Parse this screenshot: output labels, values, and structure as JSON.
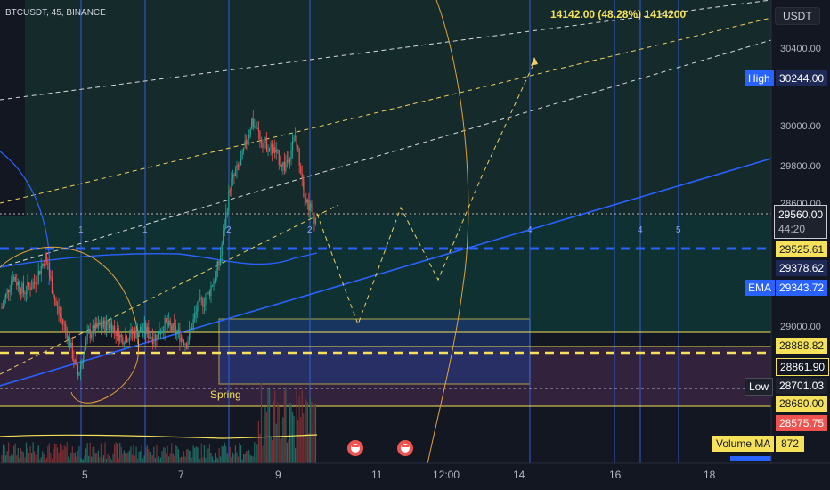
{
  "header": {
    "symbol_line": "BTCUSDT, 45, BINANCE",
    "fib_readout": "14142.00 (48.28%) 1414200"
  },
  "price_scale": {
    "currency": "USDT",
    "ticks": [
      "30400.00",
      "30000.00",
      "29800.00",
      "29000.00",
      "28600.00"
    ]
  },
  "time_axis": [
    "5",
    "7",
    "9",
    "11",
    "12:00",
    "14",
    "16",
    "18"
  ],
  "cycle_markers": [
    "1",
    "1",
    "2",
    "2",
    "4",
    "4",
    "5"
  ],
  "annotations": {
    "spring": "Spring"
  },
  "labels": {
    "high": {
      "tag": "High",
      "value": "30244.00"
    },
    "current": {
      "value": "29560.00",
      "countdown": "44:20"
    },
    "level_29525": "29525.61",
    "level_29378": "29378.62",
    "ema": {
      "tag": "EMA",
      "value": "29343.72"
    },
    "level_28888": "28888.82",
    "level_28861": "28861.90",
    "low": {
      "tag": "Low",
      "value": "28701.03"
    },
    "level_28680": "28680.00",
    "level_28575": "28575.75",
    "volume_ma": {
      "tag": "Volume MA",
      "value": "872"
    }
  },
  "colors": {
    "background": "#131722",
    "up": "#26a69a",
    "down": "#ef5350",
    "accent_blue": "#2962ff",
    "level_yellow": "#f6e15a",
    "fib_orange": "#e0a33a",
    "vertical_blue": "#2f5fd8",
    "ema_blue": "#2962ff"
  },
  "chart_data": {
    "type": "candlestick",
    "y_range": [
      28520,
      30520
    ],
    "x_labels": [
      "5",
      "7",
      "9",
      "11",
      "12:00",
      "14",
      "16",
      "18"
    ],
    "approx_close_path": [
      29190,
      29330,
      29260,
      29300,
      29410,
      29200,
      29080,
      28900,
      29080,
      29110,
      29120,
      29060,
      29080,
      29100,
      29060,
      29120,
      29090,
      29040,
      29190,
      29250,
      29380,
      29720,
      29820,
      30000,
      29910,
      29870,
      29800,
      29930,
      29660,
      29560
    ],
    "projected_path": [
      29560,
      29000,
      29620,
      29250,
      29960,
      30350
    ],
    "horizontal_levels": [
      30244.0,
      29560.0,
      29525.61,
      29378.62,
      29343.72,
      28888.82,
      28861.9,
      28701.03,
      28680.0,
      28575.75
    ]
  }
}
